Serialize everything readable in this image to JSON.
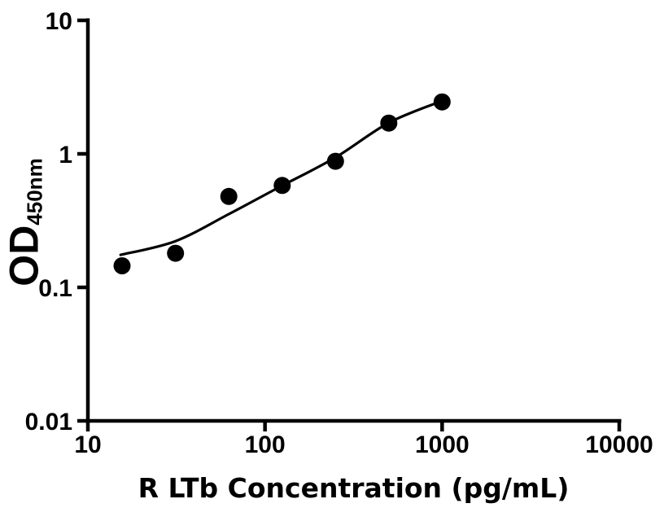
{
  "chart_data": {
    "type": "scatter",
    "title": "",
    "xlabel": "R LTb Concentration (pg/mL)",
    "ylabel": "OD",
    "ylabel_sub": "450nm",
    "x_scale": "log10",
    "y_scale": "log10",
    "xlim": [
      10,
      10000
    ],
    "ylim": [
      0.01,
      10
    ],
    "x_ticks": [
      "10",
      "100",
      "1000",
      "10000"
    ],
    "y_ticks": [
      "0.01",
      "0.1",
      "1",
      "10"
    ],
    "grid": false,
    "legend": false,
    "colors": {
      "points": "#000000",
      "curve": "#000000",
      "axis": "#000000",
      "background": "#ffffff"
    },
    "series": [
      {
        "marker": "filled-circle",
        "points": [
          {
            "x": 15.6,
            "y": 0.145
          },
          {
            "x": 31.25,
            "y": 0.18
          },
          {
            "x": 62.5,
            "y": 0.48
          },
          {
            "x": 125,
            "y": 0.58
          },
          {
            "x": 250,
            "y": 0.88
          },
          {
            "x": 500,
            "y": 1.7
          },
          {
            "x": 1000,
            "y": 2.45
          }
        ]
      }
    ],
    "fit_curve": {
      "points": [
        {
          "x": 15.3,
          "y": 0.175
        },
        {
          "x": 31.25,
          "y": 0.222
        },
        {
          "x": 62.5,
          "y": 0.354
        },
        {
          "x": 125,
          "y": 0.578
        },
        {
          "x": 250,
          "y": 0.94
        },
        {
          "x": 500,
          "y": 1.71
        },
        {
          "x": 1000,
          "y": 2.49
        }
      ]
    }
  }
}
